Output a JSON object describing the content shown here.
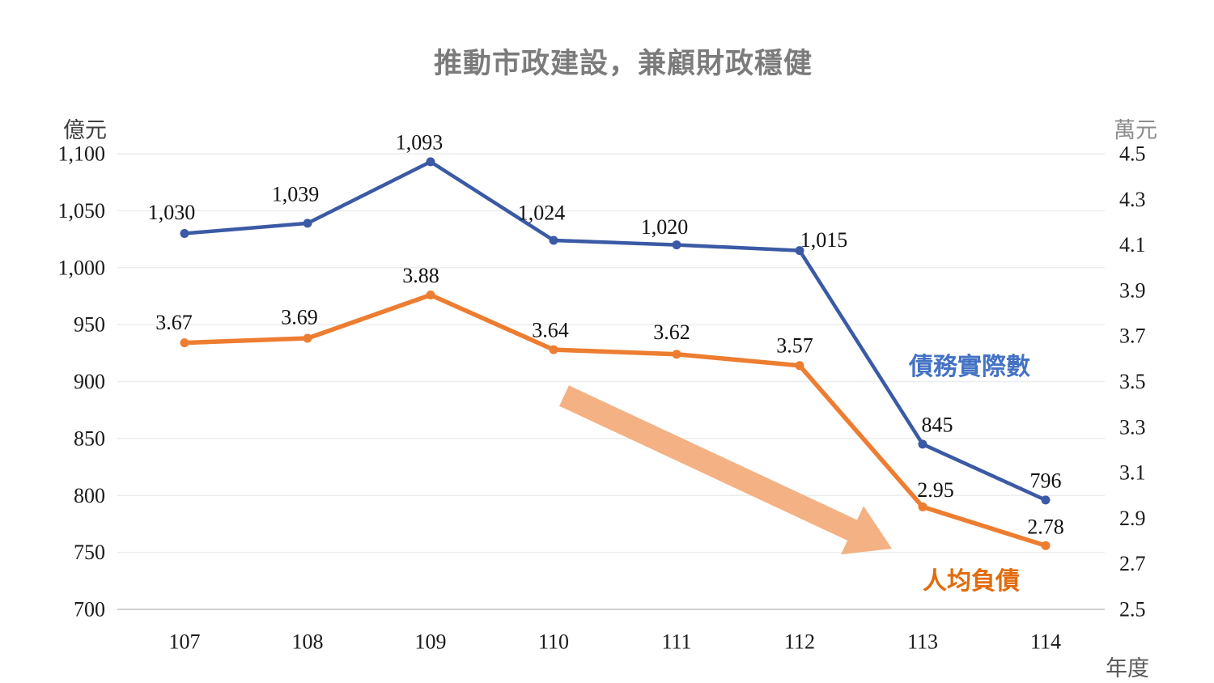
{
  "chart_data": {
    "type": "line",
    "title": "推動市政建設，兼顧財政穩健",
    "x_axis_label": "年度",
    "categories": [
      "107",
      "108",
      "109",
      "110",
      "111",
      "112",
      "113",
      "114"
    ],
    "series": [
      {
        "name": "債務實際數",
        "axis": "left",
        "color": "#3b5aa5",
        "label_color": "#4472c4",
        "values": [
          1030,
          1039,
          1093,
          1024,
          1020,
          1015,
          845,
          796
        ],
        "value_labels": [
          "1,030",
          "1,039",
          "1,093",
          "1,024",
          "1,020",
          "1,015",
          "845",
          "796"
        ]
      },
      {
        "name": "人均負債",
        "axis": "right",
        "color": "#ed7d31",
        "label_color": "#e26b0a",
        "values": [
          3.67,
          3.69,
          3.88,
          3.64,
          3.62,
          3.57,
          2.95,
          2.78
        ],
        "value_labels": [
          "3.67",
          "3.69",
          "3.88",
          "3.64",
          "3.62",
          "3.57",
          "2.95",
          "2.78"
        ]
      }
    ],
    "left_axis": {
      "unit": "億元",
      "min": 700,
      "max": 1100,
      "step": 50,
      "tick_labels": [
        "1,100",
        "1,050",
        "1,000",
        "950",
        "900",
        "850",
        "800",
        "750",
        "700"
      ]
    },
    "right_axis": {
      "unit": "萬元",
      "min": 2.5,
      "max": 4.5,
      "step": 0.2,
      "tick_labels": [
        "4.5",
        "4.3",
        "4.1",
        "3.9",
        "3.7",
        "3.5",
        "3.3",
        "3.1",
        "2.9",
        "2.7",
        "2.5"
      ]
    },
    "grid": "horizontal",
    "legend_position": "inline-annotations",
    "annotations": {
      "trend_arrow": {
        "color": "#f4b183",
        "direction": "down-right"
      }
    },
    "colors": {
      "gridline": "#ededed",
      "axis_line": "#cfcfcf",
      "title": "#7b7b7b"
    }
  }
}
